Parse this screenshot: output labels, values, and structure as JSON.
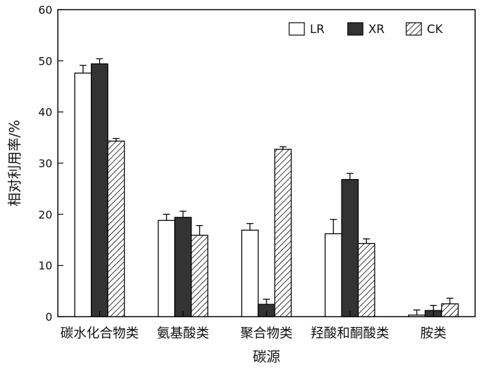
{
  "chart_data": {
    "type": "bar",
    "xlabel": "碳源",
    "ylabel": "相对利用率/%",
    "ylim": [
      0,
      60
    ],
    "yticks": [
      0,
      10,
      20,
      30,
      40,
      50,
      60
    ],
    "categories": [
      "碳水化合物类",
      "氨基酸类",
      "聚合物类",
      "羟酸和酮酸类",
      "胺类"
    ],
    "series": [
      {
        "name": "LR",
        "fill": "white",
        "values": [
          47.6,
          18.8,
          16.9,
          16.2,
          0.3
        ],
        "errors": [
          1.5,
          1.2,
          1.3,
          2.8,
          1.0
        ]
      },
      {
        "name": "XR",
        "fill": "solid",
        "values": [
          49.4,
          19.4,
          2.4,
          26.8,
          1.2
        ],
        "errors": [
          1.0,
          1.2,
          1.0,
          1.2,
          1.0
        ]
      },
      {
        "name": "CK",
        "fill": "hatched",
        "values": [
          34.3,
          15.9,
          32.7,
          14.3,
          2.5
        ],
        "errors": [
          0.5,
          1.9,
          0.5,
          0.9,
          1.1
        ]
      }
    ],
    "legend_position": "top-right",
    "grid": false,
    "colors": {
      "dark_bar": "#333333",
      "stroke": "#000000",
      "background": "#ffffff"
    }
  }
}
